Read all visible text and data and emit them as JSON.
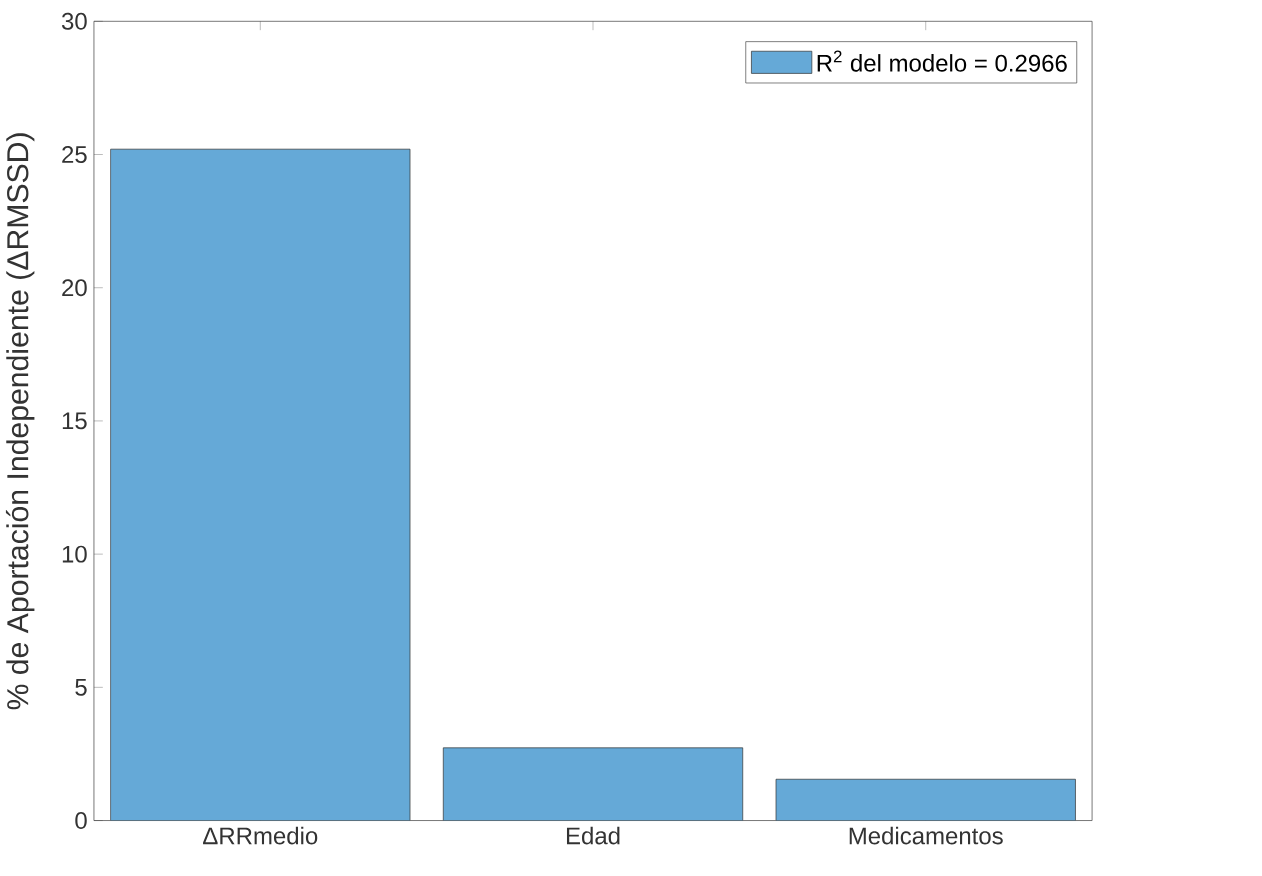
{
  "chart_data": {
    "type": "bar",
    "ylabel": "% de Aportación Independiente (ΔRMSSD)",
    "categories": [
      "ΔRRmedio",
      "Edad",
      "Medicamentos"
    ],
    "series": [
      {
        "name": "R$^{2}$ del modelo = 0.2966",
        "color": "#65a9d7",
        "values": [
          25.2,
          2.73,
          1.55
        ]
      }
    ],
    "ylim": [
      0,
      30
    ],
    "yticks": [
      0,
      5,
      10,
      15,
      20,
      25,
      30
    ],
    "legend": "top right",
    "grid": false
  }
}
